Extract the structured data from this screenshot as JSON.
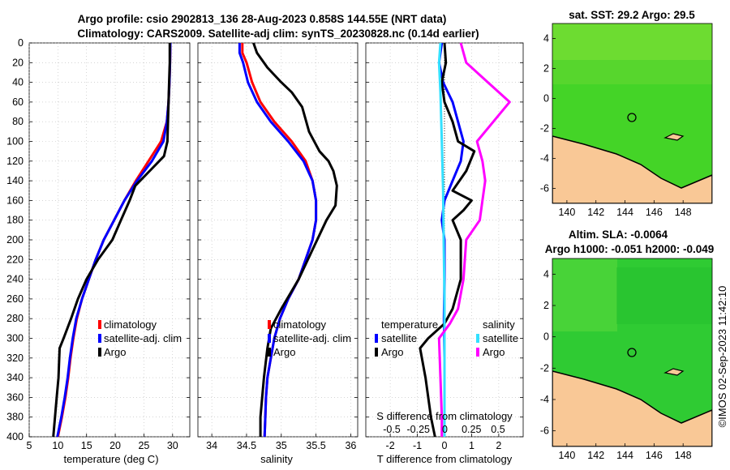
{
  "title_line1": "Argo profile: csio 2902813_136 28-Aug-2023 0.858S 144.55E (NRT data)",
  "title_line2": "Climatology: CARS2009. Satellite-adj clim: synTS_20230828.nc (0.14d earlier)",
  "sst_title": "sat. SST: 29.2 Argo: 29.5",
  "sla_title1": "Altim. SLA: -0.0064",
  "sla_title2": "Argo h1000: -0.051 h2000: -0.049",
  "copyright": "©IMOS 02-Sep-2023 11:42:10",
  "colors": {
    "climatology": "#ff0000",
    "satellite": "#0000ff",
    "argo": "#000000",
    "s_satellite": "#33e0ff",
    "s_argo": "#ff00ff",
    "land": "#f9c896",
    "sst_ocean": "#44d427",
    "sla_ocean": "#2fcb33"
  },
  "chart_data": [
    {
      "type": "line",
      "id": "temperature",
      "xlabel": "temperature (deg C)",
      "ylabel": "",
      "xlim": [
        5,
        33
      ],
      "ylim": [
        400,
        0
      ],
      "xticks": [
        5,
        10,
        15,
        20,
        25,
        30
      ],
      "yticks": [
        0,
        20,
        40,
        60,
        80,
        100,
        120,
        140,
        160,
        180,
        200,
        220,
        240,
        260,
        280,
        300,
        320,
        340,
        360,
        380,
        400
      ],
      "grid": true,
      "legend": [
        "climatology",
        "satellite-adj. clim",
        "Argo"
      ],
      "series": [
        {
          "name": "climatology",
          "color": "#ff0000",
          "points": [
            [
              29.6,
              0
            ],
            [
              29.55,
              20
            ],
            [
              29.45,
              40
            ],
            [
              29.3,
              60
            ],
            [
              29.0,
              80
            ],
            [
              28.0,
              100
            ],
            [
              25.8,
              120
            ],
            [
              23.6,
              140
            ],
            [
              21.6,
              160
            ],
            [
              19.8,
              180
            ],
            [
              18.0,
              200
            ],
            [
              16.6,
              220
            ],
            [
              15.4,
              240
            ],
            [
              14.2,
              260
            ],
            [
              13.3,
              280
            ],
            [
              12.7,
              300
            ],
            [
              12.2,
              320
            ],
            [
              11.8,
              340
            ],
            [
              11.3,
              360
            ],
            [
              10.7,
              380
            ],
            [
              10.0,
              400
            ]
          ]
        },
        {
          "name": "satellite-adj. clim",
          "color": "#0000ff",
          "points": [
            [
              29.6,
              0
            ],
            [
              29.55,
              20
            ],
            [
              29.45,
              40
            ],
            [
              29.3,
              60
            ],
            [
              29.0,
              80
            ],
            [
              28.4,
              100
            ],
            [
              26.4,
              120
            ],
            [
              23.8,
              140
            ],
            [
              21.6,
              160
            ],
            [
              19.8,
              180
            ],
            [
              18.0,
              200
            ],
            [
              16.6,
              220
            ],
            [
              15.4,
              240
            ],
            [
              14.2,
              260
            ],
            [
              13.2,
              280
            ],
            [
              12.6,
              300
            ],
            [
              12.1,
              320
            ],
            [
              11.7,
              340
            ],
            [
              11.2,
              360
            ],
            [
              10.6,
              380
            ],
            [
              9.9,
              400
            ]
          ]
        },
        {
          "name": "Argo",
          "color": "#000000",
          "points": [
            [
              29.5,
              0
            ],
            [
              29.5,
              20
            ],
            [
              29.4,
              40
            ],
            [
              29.3,
              60
            ],
            [
              29.2,
              80
            ],
            [
              29.1,
              100
            ],
            [
              28.5,
              115
            ],
            [
              26.0,
              130
            ],
            [
              23.5,
              145
            ],
            [
              22.5,
              160
            ],
            [
              21.0,
              180
            ],
            [
              19.5,
              200
            ],
            [
              17.0,
              220
            ],
            [
              15.0,
              240
            ],
            [
              13.5,
              260
            ],
            [
              12.3,
              280
            ],
            [
              11.0,
              300
            ],
            [
              10.3,
              310
            ],
            [
              10.1,
              340
            ],
            [
              9.8,
              360
            ],
            [
              9.5,
              380
            ],
            [
              9.2,
              400
            ]
          ]
        }
      ]
    },
    {
      "type": "line",
      "id": "salinity",
      "xlabel": "salinity",
      "ylabel": "",
      "xlim": [
        33.8,
        36.1
      ],
      "ylim": [
        400,
        0
      ],
      "xticks": [
        34,
        34.5,
        35,
        35.5,
        36
      ],
      "yticks": [
        0,
        20,
        40,
        60,
        80,
        100,
        120,
        140,
        160,
        180,
        200,
        220,
        240,
        260,
        280,
        300,
        320,
        340,
        360,
        380,
        400
      ],
      "grid": true,
      "legend": [
        "climatology",
        "satellite-adj. clim",
        "Argo"
      ],
      "series": [
        {
          "name": "climatology",
          "color": "#ff0000",
          "points": [
            [
              34.44,
              0
            ],
            [
              34.44,
              10
            ],
            [
              34.5,
              20
            ],
            [
              34.58,
              40
            ],
            [
              34.7,
              60
            ],
            [
              34.9,
              80
            ],
            [
              35.15,
              100
            ],
            [
              35.35,
              120
            ],
            [
              35.45,
              140
            ],
            [
              35.5,
              160
            ],
            [
              35.5,
              180
            ],
            [
              35.45,
              200
            ],
            [
              35.35,
              220
            ],
            [
              35.25,
              240
            ],
            [
              35.1,
              260
            ],
            [
              34.98,
              280
            ],
            [
              34.9,
              300
            ],
            [
              34.85,
              320
            ],
            [
              34.8,
              340
            ],
            [
              34.78,
              360
            ],
            [
              34.77,
              380
            ],
            [
              34.76,
              400
            ]
          ]
        },
        {
          "name": "satellite-adj. clim",
          "color": "#0000ff",
          "points": [
            [
              34.4,
              0
            ],
            [
              34.4,
              10
            ],
            [
              34.45,
              20
            ],
            [
              34.52,
              40
            ],
            [
              34.65,
              60
            ],
            [
              34.85,
              80
            ],
            [
              35.1,
              100
            ],
            [
              35.32,
              120
            ],
            [
              35.45,
              140
            ],
            [
              35.5,
              160
            ],
            [
              35.5,
              180
            ],
            [
              35.45,
              200
            ],
            [
              35.35,
              220
            ],
            [
              35.25,
              240
            ],
            [
              35.1,
              260
            ],
            [
              34.98,
              280
            ],
            [
              34.9,
              300
            ],
            [
              34.85,
              320
            ],
            [
              34.8,
              340
            ],
            [
              34.78,
              360
            ],
            [
              34.77,
              380
            ],
            [
              34.76,
              400
            ]
          ]
        },
        {
          "name": "Argo",
          "color": "#000000",
          "points": [
            [
              34.6,
              0
            ],
            [
              34.65,
              10
            ],
            [
              34.8,
              25
            ],
            [
              35.0,
              40
            ],
            [
              35.15,
              50
            ],
            [
              35.3,
              65
            ],
            [
              35.4,
              90
            ],
            [
              35.55,
              110
            ],
            [
              35.68,
              120
            ],
            [
              35.75,
              130
            ],
            [
              35.8,
              145
            ],
            [
              35.78,
              165
            ],
            [
              35.65,
              180
            ],
            [
              35.45,
              210
            ],
            [
              35.25,
              240
            ],
            [
              35.0,
              270
            ],
            [
              34.85,
              290
            ],
            [
              34.8,
              310
            ],
            [
              34.75,
              340
            ],
            [
              34.7,
              380
            ],
            [
              34.7,
              400
            ]
          ]
        }
      ]
    },
    {
      "type": "line",
      "id": "difference",
      "xlabel": "T difference from climatology",
      "x2label": "S difference from climatology",
      "xlim": [
        -2.9,
        2.9
      ],
      "ylim": [
        400,
        0
      ],
      "xticks": [
        -2,
        -1,
        0,
        1,
        2
      ],
      "x2ticks": [
        -0.5,
        -0.25,
        0,
        0.25,
        0.5
      ],
      "yticks": [
        0,
        20,
        40,
        60,
        80,
        100,
        120,
        140,
        160,
        180,
        200,
        220,
        240,
        260,
        280,
        300,
        320,
        340,
        360,
        380,
        400
      ],
      "grid": true,
      "legend_t_header": "temperature",
      "legend_s_header": "salinity",
      "legend_t": [
        "satellite",
        "Argo"
      ],
      "legend_s": [
        "satellite",
        "Argo"
      ],
      "series": [
        {
          "name": "T satellite",
          "color": "#0000ff",
          "points": [
            [
              -0.1,
              0
            ],
            [
              -0.2,
              20
            ],
            [
              -0.05,
              40
            ],
            [
              0.3,
              60
            ],
            [
              0.5,
              80
            ],
            [
              0.7,
              100
            ],
            [
              0.6,
              120
            ],
            [
              0.3,
              140
            ],
            [
              0.0,
              160
            ],
            [
              -0.1,
              180
            ],
            [
              0.0,
              200
            ],
            [
              0.0,
              240
            ],
            [
              -0.02,
              280
            ],
            [
              0.0,
              320
            ],
            [
              0.0,
              400
            ]
          ]
        },
        {
          "name": "T Argo",
          "color": "#000000",
          "points": [
            [
              0.0,
              0
            ],
            [
              0.05,
              20
            ],
            [
              -0.1,
              40
            ],
            [
              0.0,
              60
            ],
            [
              0.3,
              80
            ],
            [
              0.5,
              100
            ],
            [
              1.1,
              110
            ],
            [
              0.8,
              130
            ],
            [
              0.3,
              150
            ],
            [
              1.0,
              160
            ],
            [
              0.7,
              170
            ],
            [
              0.3,
              180
            ],
            [
              0.6,
              200
            ],
            [
              0.6,
              240
            ],
            [
              0.3,
              270
            ],
            [
              0.0,
              285
            ],
            [
              -0.6,
              300
            ],
            [
              -0.9,
              310
            ],
            [
              -0.7,
              340
            ],
            [
              -0.5,
              380
            ],
            [
              -0.35,
              400
            ]
          ]
        },
        {
          "name": "S satellite",
          "color": "#33e0ff",
          "points": [
            [
              -0.15,
              0
            ],
            [
              -0.2,
              20
            ],
            [
              -0.15,
              50
            ],
            [
              -0.1,
              100
            ],
            [
              -0.05,
              150
            ],
            [
              -0.03,
              200
            ],
            [
              0.0,
              260
            ],
            [
              0.0,
              400
            ]
          ]
        },
        {
          "name": "S Argo",
          "color": "#ff00ff",
          "points": [
            [
              0.6,
              0
            ],
            [
              0.8,
              20
            ],
            [
              1.6,
              40
            ],
            [
              2.4,
              60
            ],
            [
              1.8,
              80
            ],
            [
              1.2,
              100
            ],
            [
              1.4,
              120
            ],
            [
              1.5,
              140
            ],
            [
              1.4,
              160
            ],
            [
              1.3,
              180
            ],
            [
              0.8,
              200
            ],
            [
              0.7,
              240
            ],
            [
              0.5,
              270
            ],
            [
              0.2,
              285
            ],
            [
              -0.2,
              300
            ],
            [
              -0.15,
              340
            ],
            [
              -0.1,
              380
            ],
            [
              -0.1,
              400
            ]
          ]
        }
      ]
    },
    {
      "type": "heatmap",
      "id": "sst_map",
      "title": "sat. SST: 29.2 Argo: 29.5",
      "xlim": [
        139,
        150
      ],
      "ylim": [
        -7,
        5
      ],
      "xticks": [
        140,
        142,
        144,
        146,
        148
      ],
      "yticks": [
        -6,
        -4,
        -2,
        0,
        2,
        4
      ],
      "argo_position": [
        144.55,
        -0.86
      ]
    },
    {
      "type": "heatmap",
      "id": "sla_map",
      "title": "Altim. SLA: -0.0064",
      "subtitle": "Argo h1000: -0.051 h2000: -0.049",
      "xlim": [
        139,
        150
      ],
      "ylim": [
        -7,
        5
      ],
      "xticks": [
        140,
        142,
        144,
        146,
        148
      ],
      "yticks": [
        -6,
        -4,
        -2,
        0,
        2,
        4
      ],
      "argo_position": [
        144.55,
        -0.86
      ]
    }
  ]
}
